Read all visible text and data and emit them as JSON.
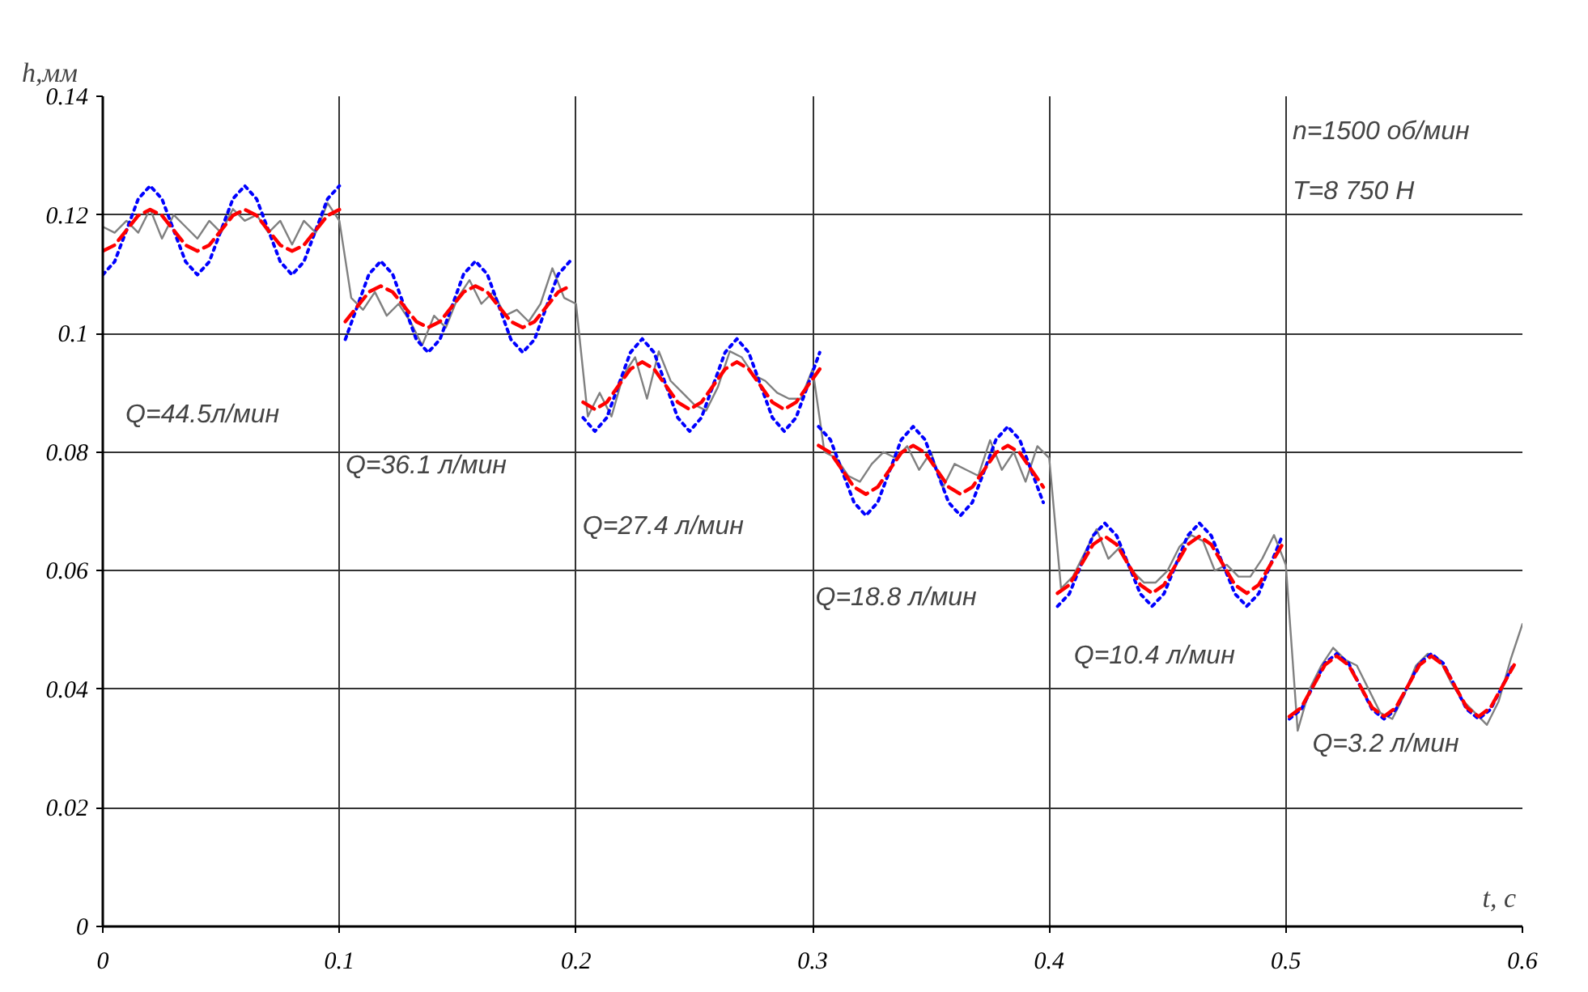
{
  "chart_data": {
    "type": "line",
    "ylabel": "h,мм",
    "xlabel": "t, c",
    "xlim": [
      0,
      0.6
    ],
    "ylim": [
      0,
      0.14
    ],
    "xticks": [
      0,
      0.1,
      0.2,
      0.3,
      0.4,
      0.5,
      0.6
    ],
    "yticks": [
      0,
      0.02,
      0.04,
      0.06,
      0.08,
      0.1,
      0.12,
      0.14
    ],
    "grid": true,
    "annotations": [
      "n=1500 об/мин",
      "T=8 750 H",
      "Q=44.5л/мин",
      "Q=36.1 л/мин",
      "Q=27.4 л/мин",
      "Q=18.8 л/мин",
      "Q=10.4 л/мин",
      "Q=3.2 л/мин"
    ],
    "series": [
      {
        "color": "#808080",
        "line_style": "solid",
        "x": [
          0,
          0.005,
          0.01,
          0.015,
          0.02,
          0.025,
          0.03,
          0.035,
          0.04,
          0.045,
          0.05,
          0.055,
          0.06,
          0.065,
          0.07,
          0.075,
          0.08,
          0.085,
          0.09,
          0.095,
          0.1,
          0.105,
          0.11,
          0.115,
          0.12,
          0.125,
          0.13,
          0.135,
          0.14,
          0.145,
          0.15,
          0.155,
          0.16,
          0.165,
          0.17,
          0.175,
          0.18,
          0.185,
          0.19,
          0.195,
          0.2,
          0.205,
          0.21,
          0.215,
          0.22,
          0.225,
          0.23,
          0.235,
          0.24,
          0.245,
          0.25,
          0.255,
          0.26,
          0.265,
          0.27,
          0.275,
          0.28,
          0.285,
          0.29,
          0.295,
          0.3,
          0.305,
          0.31,
          0.315,
          0.32,
          0.325,
          0.33,
          0.335,
          0.34,
          0.345,
          0.35,
          0.355,
          0.36,
          0.365,
          0.37,
          0.375,
          0.38,
          0.385,
          0.39,
          0.395,
          0.4,
          0.405,
          0.41,
          0.415,
          0.42,
          0.425,
          0.43,
          0.435,
          0.44,
          0.445,
          0.45,
          0.455,
          0.46,
          0.465,
          0.47,
          0.475,
          0.48,
          0.485,
          0.49,
          0.495,
          0.5,
          0.505,
          0.51,
          0.515,
          0.52,
          0.525,
          0.53,
          0.535,
          0.54,
          0.545,
          0.55,
          0.555,
          0.56,
          0.565,
          0.57,
          0.575,
          0.58,
          0.585,
          0.59,
          0.595,
          0.6
        ],
        "values": [
          0.118,
          0.117,
          0.119,
          0.117,
          0.121,
          0.116,
          0.12,
          0.118,
          0.116,
          0.119,
          0.117,
          0.121,
          0.119,
          0.12,
          0.117,
          0.119,
          0.115,
          0.119,
          0.117,
          0.122,
          0.119,
          0.106,
          0.104,
          0.107,
          0.103,
          0.105,
          0.102,
          0.098,
          0.103,
          0.101,
          0.106,
          0.109,
          0.105,
          0.107,
          0.103,
          0.104,
          0.102,
          0.105,
          0.111,
          0.106,
          0.105,
          0.086,
          0.09,
          0.086,
          0.093,
          0.096,
          0.089,
          0.097,
          0.092,
          0.09,
          0.088,
          0.087,
          0.091,
          0.097,
          0.096,
          0.093,
          0.092,
          0.09,
          0.089,
          0.089,
          0.094,
          0.08,
          0.079,
          0.076,
          0.075,
          0.078,
          0.08,
          0.079,
          0.081,
          0.077,
          0.08,
          0.074,
          0.078,
          0.077,
          0.076,
          0.082,
          0.077,
          0.08,
          0.075,
          0.081,
          0.079,
          0.057,
          0.059,
          0.063,
          0.067,
          0.062,
          0.064,
          0.06,
          0.058,
          0.058,
          0.06,
          0.064,
          0.066,
          0.065,
          0.06,
          0.061,
          0.059,
          0.059,
          0.062,
          0.066,
          0.061,
          0.033,
          0.04,
          0.044,
          0.047,
          0.045,
          0.044,
          0.04,
          0.036,
          0.035,
          0.039,
          0.044,
          0.046,
          0.045,
          0.041,
          0.038,
          0.036,
          0.034,
          0.038,
          0.045,
          0.051
        ]
      },
      {
        "color": "#0000ff",
        "line_style": "dotted",
        "x": [
          0,
          0.005,
          0.01,
          0.015,
          0.02,
          0.025,
          0.03,
          0.035,
          0.04,
          0.045,
          0.05,
          0.055,
          0.06,
          0.065,
          0.07,
          0.075,
          0.08,
          0.085,
          0.09,
          0.095,
          0.1,
          null,
          0.1025,
          0.1075,
          0.1125,
          0.1175,
          0.1225,
          0.1275,
          0.1325,
          0.1375,
          0.1425,
          0.1475,
          0.1525,
          0.1575,
          0.1625,
          0.1675,
          0.1725,
          0.1775,
          0.1825,
          0.1875,
          0.1925,
          0.1975,
          null,
          0.203,
          0.208,
          0.213,
          0.218,
          0.223,
          0.228,
          0.233,
          0.238,
          0.243,
          0.248,
          0.253,
          0.258,
          0.263,
          0.268,
          0.273,
          0.278,
          0.283,
          0.288,
          0.293,
          0.298,
          0.303,
          null,
          0.3025,
          0.3075,
          0.3125,
          0.3175,
          0.3225,
          0.3275,
          0.3325,
          0.3375,
          0.3425,
          0.3475,
          0.3525,
          0.3575,
          0.3625,
          0.3675,
          0.3725,
          0.3775,
          0.3825,
          0.3875,
          0.3925,
          0.3975,
          null,
          0.4035,
          0.4085,
          0.4135,
          0.4185,
          0.4235,
          0.4285,
          0.4335,
          0.4385,
          0.4435,
          0.4485,
          0.4535,
          0.4585,
          0.4635,
          0.4685,
          0.4735,
          0.4785,
          0.4835,
          0.4885,
          0.4935,
          0.4985,
          null,
          0.5015,
          0.5065,
          0.5115,
          0.5165,
          0.5215,
          0.5265,
          0.5315,
          0.5365,
          0.5415,
          0.5465,
          0.5515,
          0.5565,
          0.5615,
          0.5665,
          0.5715,
          0.5765,
          0.5815,
          0.5865,
          0.5915,
          0.5965
        ],
        "values": [
          0.1099,
          0.1121,
          0.1174,
          0.1227,
          0.1249,
          0.1227,
          0.1174,
          0.1121,
          0.1099,
          0.1121,
          0.1174,
          0.1227,
          0.1249,
          0.1227,
          0.1174,
          0.1121,
          0.1099,
          0.1121,
          0.1174,
          0.1227,
          0.1249,
          null,
          0.099,
          0.1045,
          0.11,
          0.1122,
          0.11,
          0.1045,
          0.099,
          0.0968,
          0.099,
          0.1045,
          0.11,
          0.1122,
          0.11,
          0.1045,
          0.099,
          0.0968,
          0.099,
          0.1045,
          0.11,
          0.1122,
          null,
          0.0858,
          0.0835,
          0.0858,
          0.0913,
          0.0968,
          0.0991,
          0.0968,
          0.0913,
          0.0858,
          0.0835,
          0.0858,
          0.0913,
          0.0968,
          0.0991,
          0.0968,
          0.0913,
          0.0858,
          0.0835,
          0.0858,
          0.0913,
          0.0968,
          null,
          0.0843,
          0.0821,
          0.0768,
          0.0715,
          0.0693,
          0.0715,
          0.0768,
          0.0821,
          0.0843,
          0.0821,
          0.0768,
          0.0715,
          0.0693,
          0.0715,
          0.0768,
          0.0821,
          0.0843,
          0.0821,
          0.0768,
          0.0715,
          null,
          0.054,
          0.0561,
          0.061,
          0.0659,
          0.068,
          0.0659,
          0.061,
          0.0561,
          0.054,
          0.0561,
          0.061,
          0.0659,
          0.068,
          0.0659,
          0.061,
          0.0561,
          0.054,
          0.0561,
          0.061,
          0.0659,
          null,
          0.035,
          0.0366,
          0.0405,
          0.0444,
          0.046,
          0.0444,
          0.0405,
          0.0366,
          0.035,
          0.0366,
          0.0405,
          0.0444,
          0.046,
          0.0444,
          0.0405,
          0.0366,
          0.035,
          0.0366,
          0.0405,
          0.0444
        ]
      },
      {
        "color": "#ff0000",
        "line_style": "dashed",
        "x": [
          0,
          0.005,
          0.01,
          0.015,
          0.02,
          0.025,
          0.03,
          0.035,
          0.04,
          0.045,
          0.05,
          0.055,
          0.06,
          0.065,
          0.07,
          0.075,
          0.08,
          0.085,
          0.09,
          0.095,
          0.1,
          null,
          0.1025,
          0.1075,
          0.1125,
          0.1175,
          0.1225,
          0.1275,
          0.1325,
          0.1375,
          0.1425,
          0.1475,
          0.1525,
          0.1575,
          0.1625,
          0.1675,
          0.1725,
          0.1775,
          0.1825,
          0.1875,
          0.1925,
          0.1975,
          null,
          0.203,
          0.208,
          0.213,
          0.218,
          0.223,
          0.228,
          0.233,
          0.238,
          0.243,
          0.248,
          0.253,
          0.258,
          0.263,
          0.268,
          0.273,
          0.278,
          0.283,
          0.288,
          0.293,
          0.298,
          0.303,
          null,
          0.3025,
          0.3075,
          0.3125,
          0.3175,
          0.3225,
          0.3275,
          0.3325,
          0.3375,
          0.3425,
          0.3475,
          0.3525,
          0.3575,
          0.3625,
          0.3675,
          0.3725,
          0.3775,
          0.3825,
          0.3875,
          0.3925,
          0.3975,
          null,
          0.4035,
          0.4085,
          0.4135,
          0.4185,
          0.4235,
          0.4285,
          0.4335,
          0.4385,
          0.4435,
          0.4485,
          0.4535,
          0.4585,
          0.4635,
          0.4685,
          0.4735,
          0.4785,
          0.4835,
          0.4885,
          0.4935,
          0.4985,
          null,
          0.5015,
          0.5065,
          0.5115,
          0.5165,
          0.5215,
          0.5265,
          0.5315,
          0.5365,
          0.5415,
          0.5465,
          0.5515,
          0.5565,
          0.5615,
          0.5665,
          0.5715,
          0.5765,
          0.5815,
          0.5865,
          0.5915,
          0.5965
        ],
        "values": [
          0.1139,
          0.1149,
          0.1174,
          0.1199,
          0.1209,
          0.1199,
          0.1174,
          0.1149,
          0.1139,
          0.1149,
          0.1174,
          0.1199,
          0.1209,
          0.1199,
          0.1174,
          0.1149,
          0.1139,
          0.1149,
          0.1174,
          0.1199,
          0.1209,
          null,
          0.102,
          0.1045,
          0.107,
          0.108,
          0.107,
          0.1045,
          0.102,
          0.101,
          0.102,
          0.1045,
          0.107,
          0.108,
          0.107,
          0.1045,
          0.102,
          0.101,
          0.102,
          0.1045,
          0.107,
          0.108,
          null,
          0.0884,
          0.0872,
          0.0884,
          0.0912,
          0.094,
          0.0952,
          0.094,
          0.0912,
          0.0884,
          0.0872,
          0.0884,
          0.0912,
          0.094,
          0.0952,
          0.094,
          0.0912,
          0.0884,
          0.0872,
          0.0884,
          0.0912,
          0.094,
          null,
          0.0811,
          0.0799,
          0.077,
          0.0741,
          0.0729,
          0.0741,
          0.077,
          0.0799,
          0.0811,
          0.0799,
          0.077,
          0.0741,
          0.0729,
          0.0741,
          0.077,
          0.0799,
          0.0811,
          0.0799,
          0.077,
          0.0741,
          null,
          0.0562,
          0.0576,
          0.061,
          0.0644,
          0.0658,
          0.0644,
          0.061,
          0.0576,
          0.0562,
          0.0576,
          0.061,
          0.0644,
          0.0658,
          0.0644,
          0.061,
          0.0576,
          0.0562,
          0.0576,
          0.061,
          0.0644,
          null,
          0.0354,
          0.0369,
          0.0405,
          0.0441,
          0.0456,
          0.0441,
          0.0405,
          0.0369,
          0.0354,
          0.0369,
          0.0405,
          0.0441,
          0.0456,
          0.0441,
          0.0405,
          0.0369,
          0.0354,
          0.0369,
          0.0405,
          0.0441
        ]
      }
    ]
  }
}
